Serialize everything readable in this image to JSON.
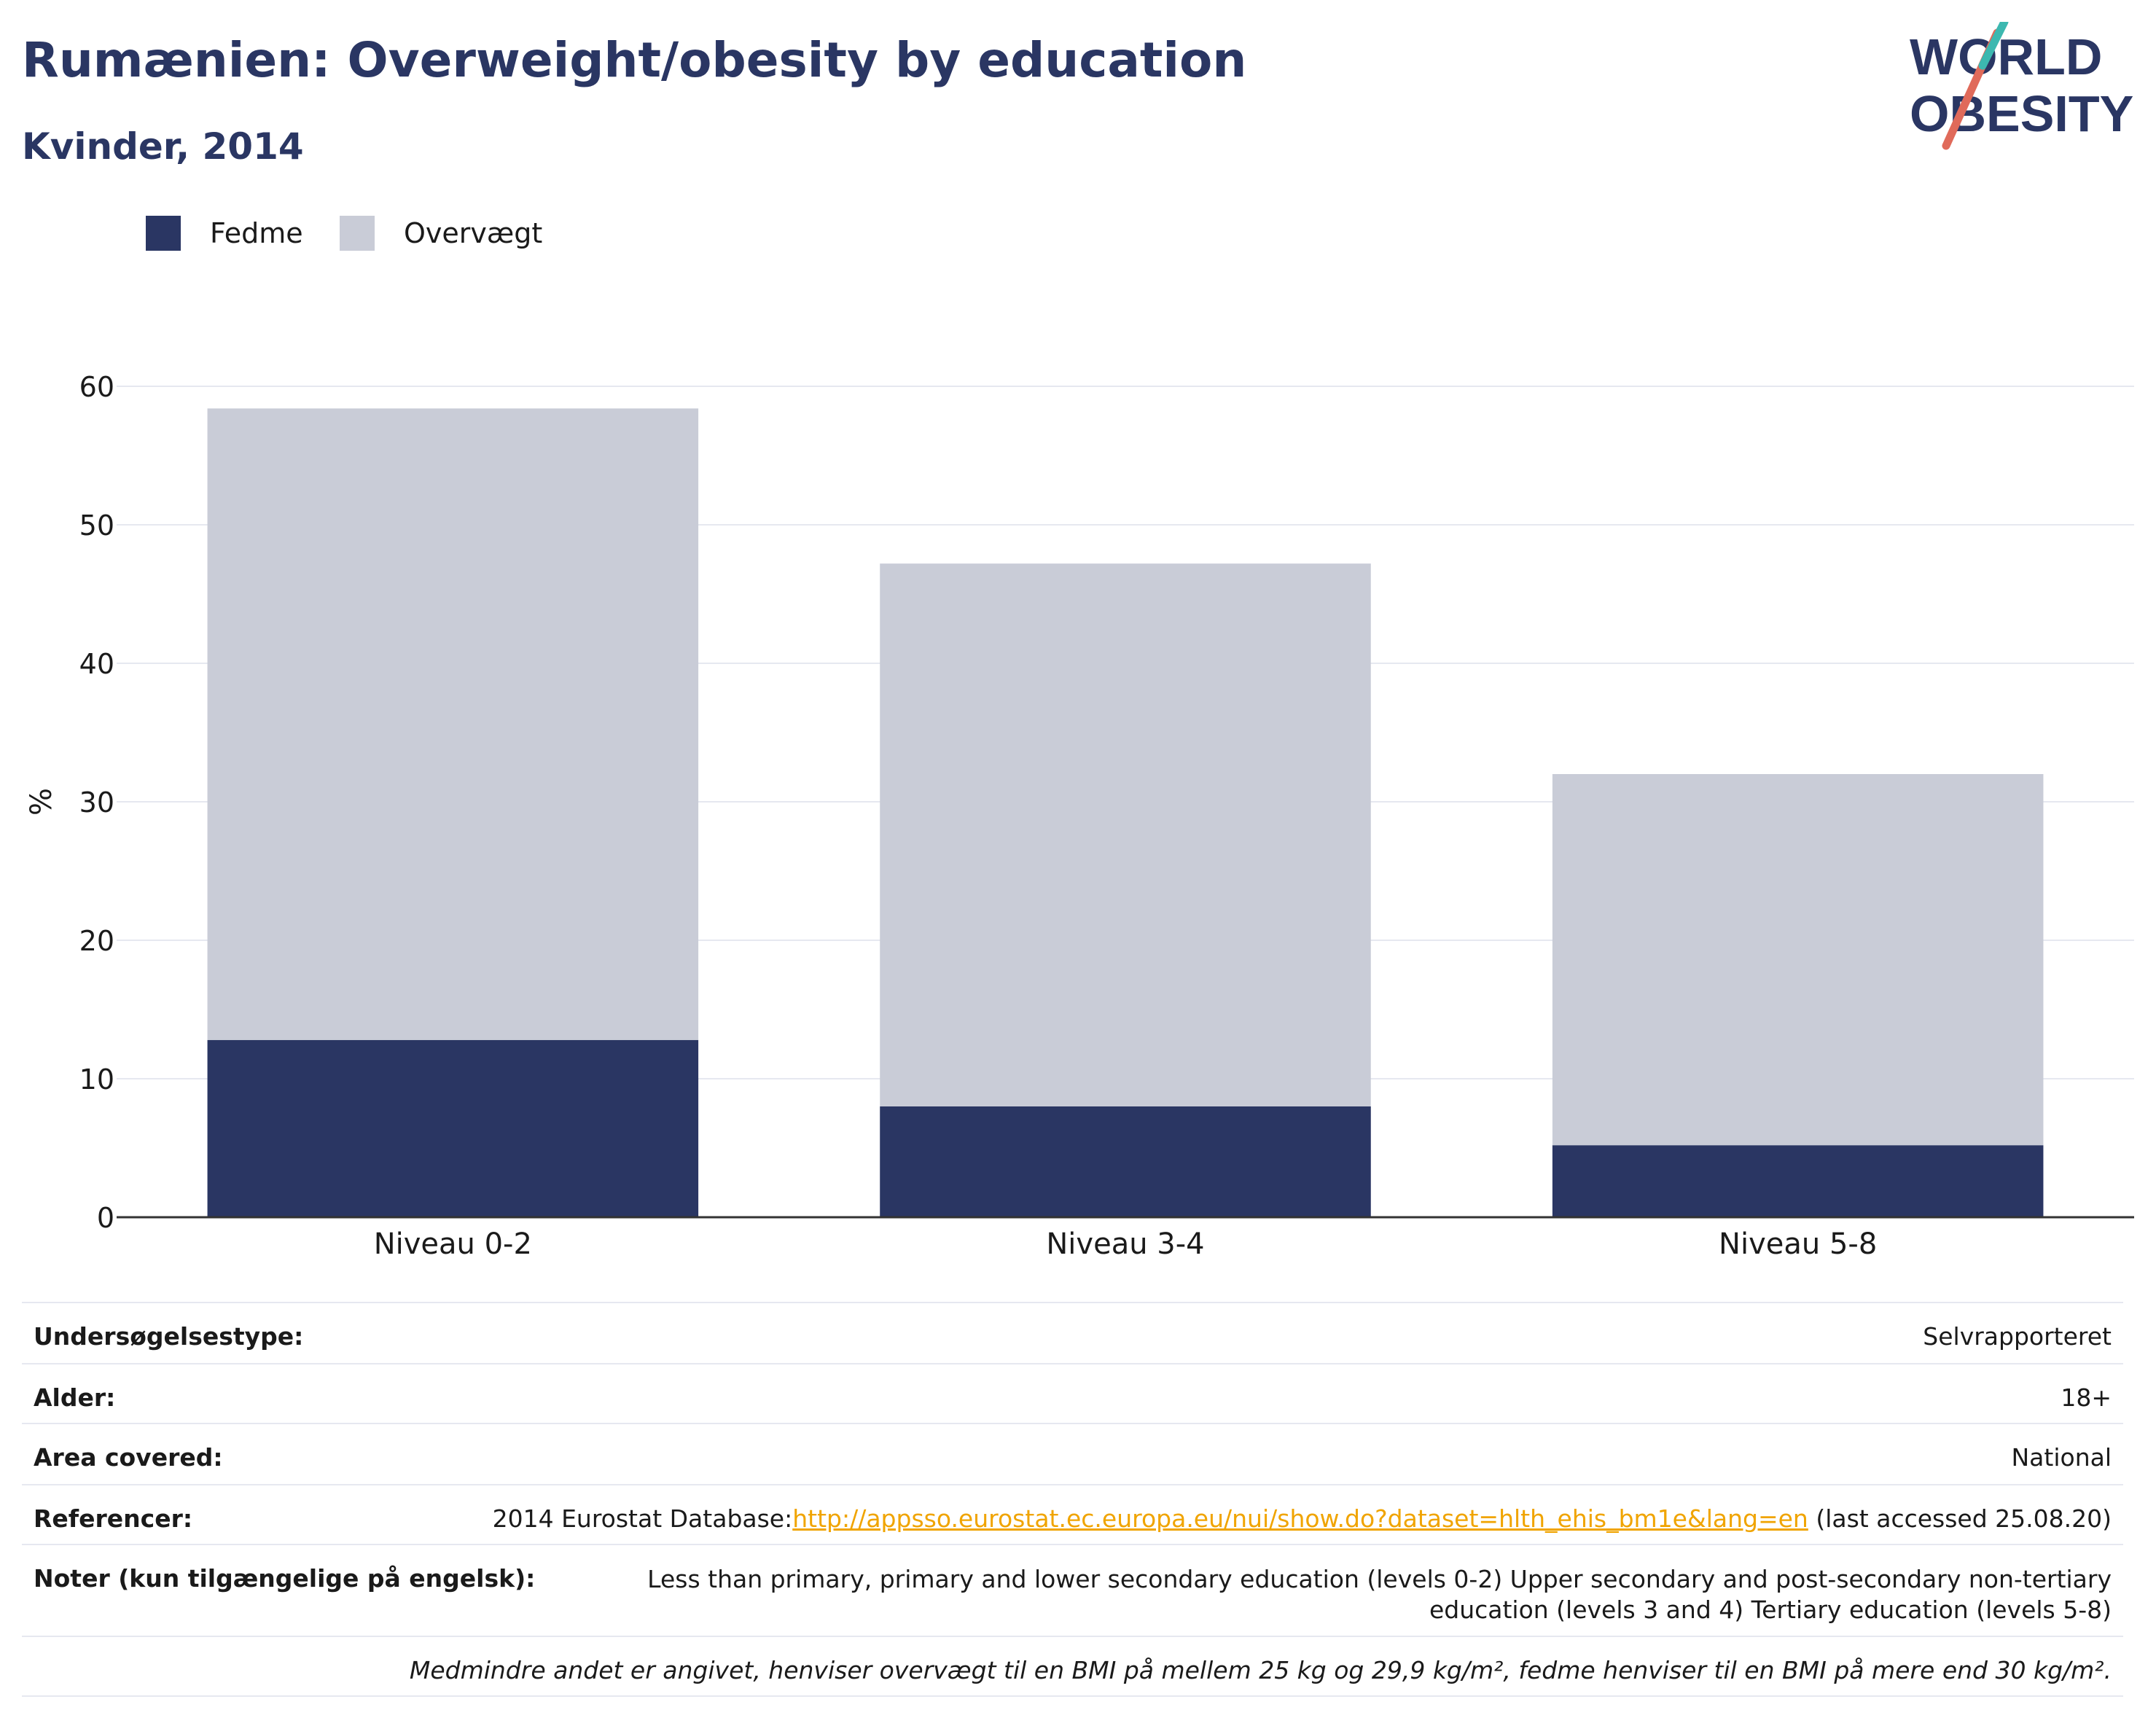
{
  "header": {
    "title": "Rumænien: Overweight/obesity by education",
    "subtitle": "Kvinder, 2014"
  },
  "logo": {
    "line1": "WORLD",
    "line2": "OBESITY"
  },
  "legend": [
    {
      "label": "Fedme",
      "color": "#2a3663"
    },
    {
      "label": "Overvægt",
      "color": "#c9ccd7"
    }
  ],
  "chart_data": {
    "type": "bar",
    "stacked": true,
    "categories": [
      "Niveau 0-2",
      "Niveau 3-4",
      "Niveau 5-8"
    ],
    "series": [
      {
        "name": "Fedme",
        "color": "#2a3663",
        "values": [
          12.8,
          8.0,
          5.2
        ]
      },
      {
        "name": "Overvægt",
        "color": "#c9ccd7",
        "values": [
          45.6,
          39.2,
          26.8
        ]
      }
    ],
    "ylabel": "%",
    "ylim": [
      0,
      60
    ],
    "yticks": [
      0,
      10,
      20,
      30,
      40,
      50,
      60
    ],
    "grid": true,
    "legend_position": "top-left"
  },
  "info": {
    "survey_type": {
      "label": "Undersøgelsestype:",
      "value": "Selvrapporteret"
    },
    "age": {
      "label": "Alder:",
      "value": "18+"
    },
    "area": {
      "label": "Area covered:",
      "value": "National"
    },
    "references": {
      "label": "Referencer:",
      "prefix": "2014 Eurostat Database:",
      "link": "http://appsso.eurostat.ec.europa.eu/nui/show.do?dataset=hlth_ehis_bm1e&lang=en",
      "suffix": " (last accessed 25.08.20)"
    },
    "notes": {
      "label": "Noter (kun tilgængelige på engelsk):",
      "value": "Less than primary, primary and lower secondary education (levels 0-2) Upper secondary and post-secondary non-tertiary education (levels 3 and 4) Tertiary education (levels 5-8)"
    },
    "footnote": "Medmindre andet er angivet, henviser overvægt til en BMI på mellem 25 kg og 29,9 kg/m², fedme henviser til en BMI på mere end 30 kg/m²."
  }
}
